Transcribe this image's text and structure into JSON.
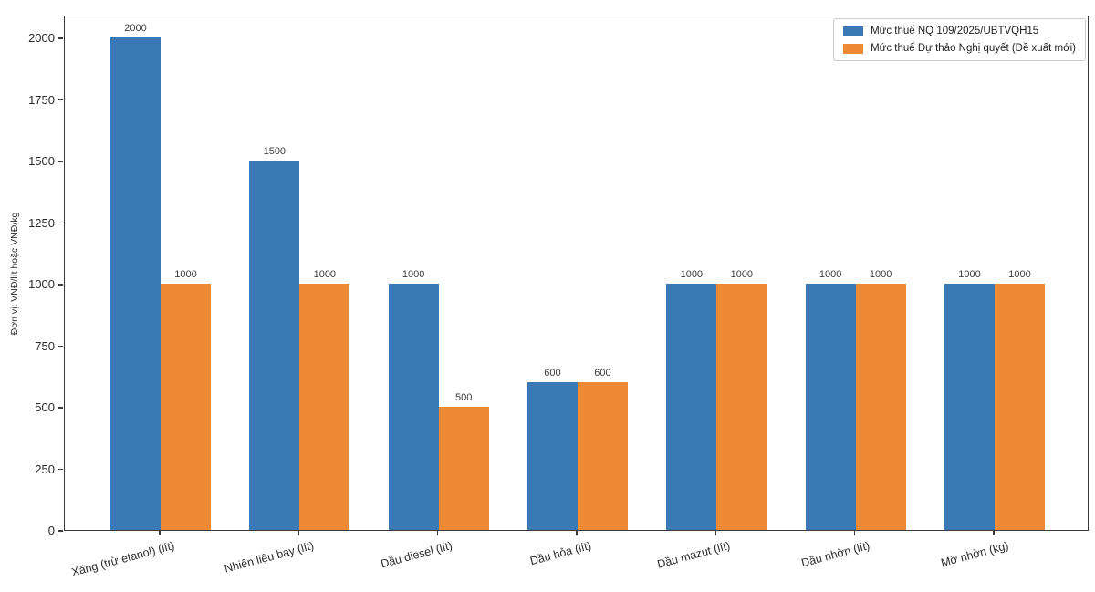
{
  "chart_data": {
    "type": "bar",
    "title": "",
    "xlabel": "",
    "ylabel": "Đơn vị: VNĐ/lít hoặc VNĐ/kg",
    "categories": [
      "Xăng (trừ etanol) (lít)",
      "Nhiên liệu bay (lít)",
      "Dầu diesel (lít)",
      "Dầu hỏa (lít)",
      "Dầu mazut (lít)",
      "Dầu nhờn (lít)",
      "Mỡ nhờn (kg)"
    ],
    "series": [
      {
        "name": "Mức thuế NQ 109/2025/UBTVQH15",
        "color": "#3a79b5",
        "values": [
          2000,
          1500,
          1000,
          600,
          1000,
          1000,
          1000
        ]
      },
      {
        "name": "Mức thuế Dự thảo Nghị quyết (Đề xuất mới)",
        "color": "#ee8936",
        "values": [
          1000,
          1000,
          500,
          600,
          1000,
          1000,
          1000
        ]
      }
    ],
    "ylim": [
      0,
      2090
    ],
    "yticks": [
      0,
      250,
      500,
      750,
      1000,
      1250,
      1500,
      1750,
      2000
    ],
    "grid": false,
    "legend_position": "upper right",
    "bar_value_labels": true,
    "colors": {
      "spine": "#3a3a3a",
      "tick_text": "#2b2b2b",
      "value_label_text": "#3c3c3c",
      "legend_border": "#cccccc",
      "background": "#ffffff"
    }
  }
}
